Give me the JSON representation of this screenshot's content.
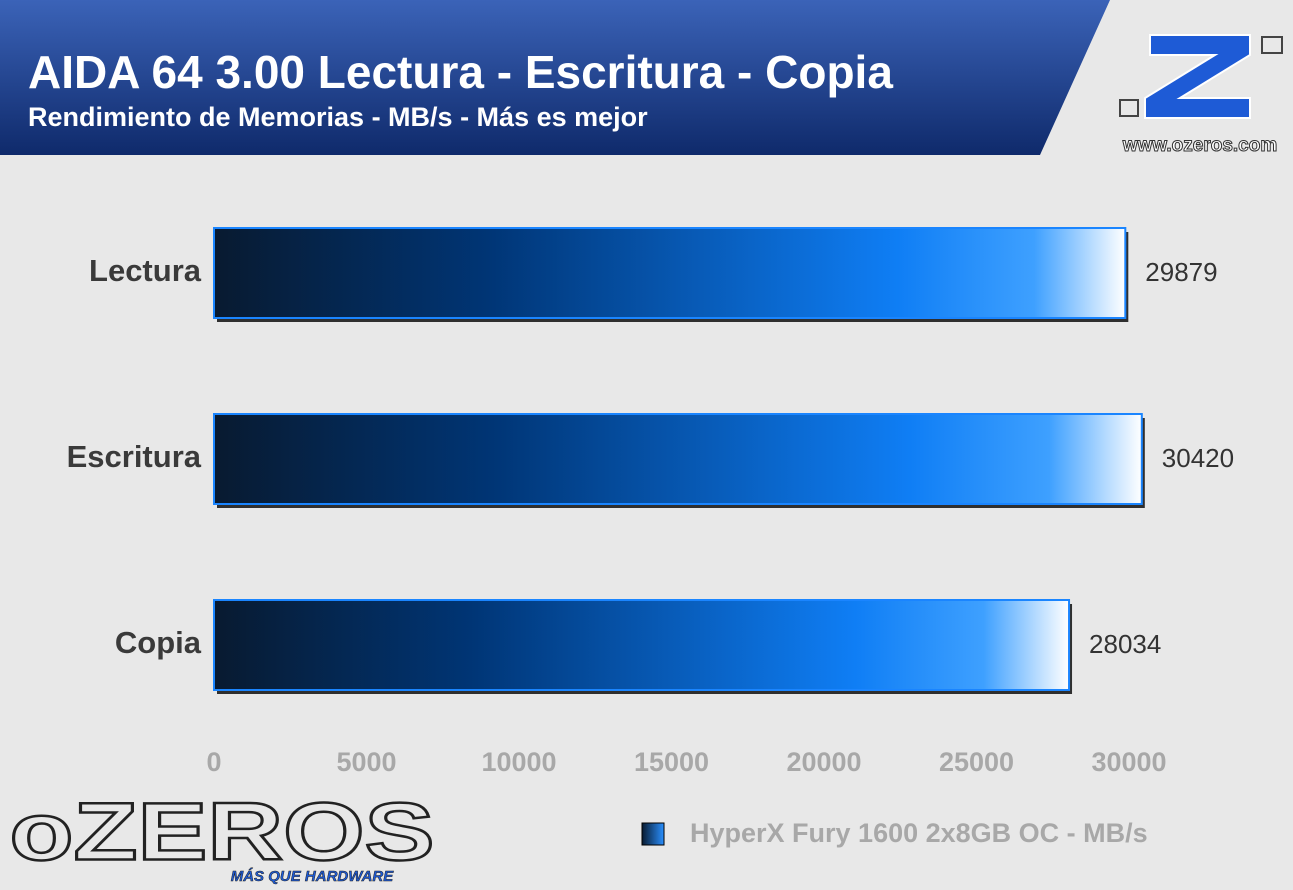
{
  "chart_data": {
    "type": "bar",
    "orientation": "horizontal",
    "title": "AIDA 64 3.00 Lectura - Escritura - Copia",
    "subtitle": "Rendimiento de Memorias - MB/s - Más es mejor",
    "categories": [
      "Lectura",
      "Escritura",
      "Copia"
    ],
    "series": [
      {
        "name": "HyperX Fury 1600 2x8GB OC - MB/s",
        "color": "#1a85ff",
        "values": [
          29879,
          30420,
          28034
        ]
      }
    ],
    "xlim": [
      0,
      30000
    ],
    "xticks": [
      0,
      5000,
      10000,
      15000,
      20000,
      25000,
      30000
    ],
    "grid": false,
    "legend": "bottom-right"
  },
  "branding": {
    "url": "www.ozeros.com",
    "logo": "oZEROS",
    "tagline": "MÁS QUE HARDWARE"
  }
}
